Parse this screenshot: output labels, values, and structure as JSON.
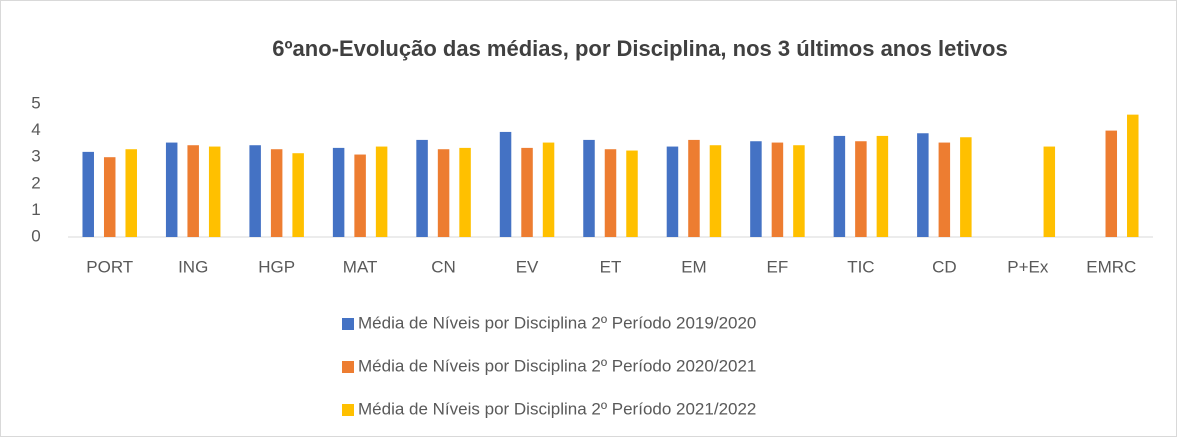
{
  "chart_data": {
    "type": "bar",
    "title": "6ºano-Evolução das médias, por Disciplina, nos 3 últimos anos letivos",
    "categories": [
      "PORT",
      "ING",
      "HGP",
      "MAT",
      "CN",
      "EV",
      "ET",
      "EM",
      "EF",
      "TIC",
      "CD",
      "P+Ex",
      "EMRC"
    ],
    "series": [
      {
        "name": "Média de Níveis por Disciplina 2º Período 2019/2020",
        "color": "#4472c4",
        "values": [
          3.2,
          3.55,
          3.45,
          3.35,
          3.65,
          3.95,
          3.65,
          3.4,
          3.6,
          3.8,
          3.9,
          null,
          null
        ]
      },
      {
        "name": "Média de Níveis por Disciplina 2º Período 2020/2021",
        "color": "#ed7d31",
        "values": [
          3.0,
          3.45,
          3.3,
          3.1,
          3.3,
          3.35,
          3.3,
          3.65,
          3.55,
          3.6,
          3.55,
          null,
          4.0
        ]
      },
      {
        "name": "Média de Níveis por Disciplina 2º Período 2021/2022",
        "color": "#ffc000",
        "values": [
          3.3,
          3.4,
          3.15,
          3.4,
          3.35,
          3.55,
          3.25,
          3.45,
          3.45,
          3.8,
          3.75,
          3.4,
          4.6
        ]
      }
    ],
    "ylim": [
      0,
      5
    ],
    "yticks": [
      0,
      1,
      2,
      3,
      4,
      5
    ],
    "grid": false,
    "legend": "bottom"
  }
}
